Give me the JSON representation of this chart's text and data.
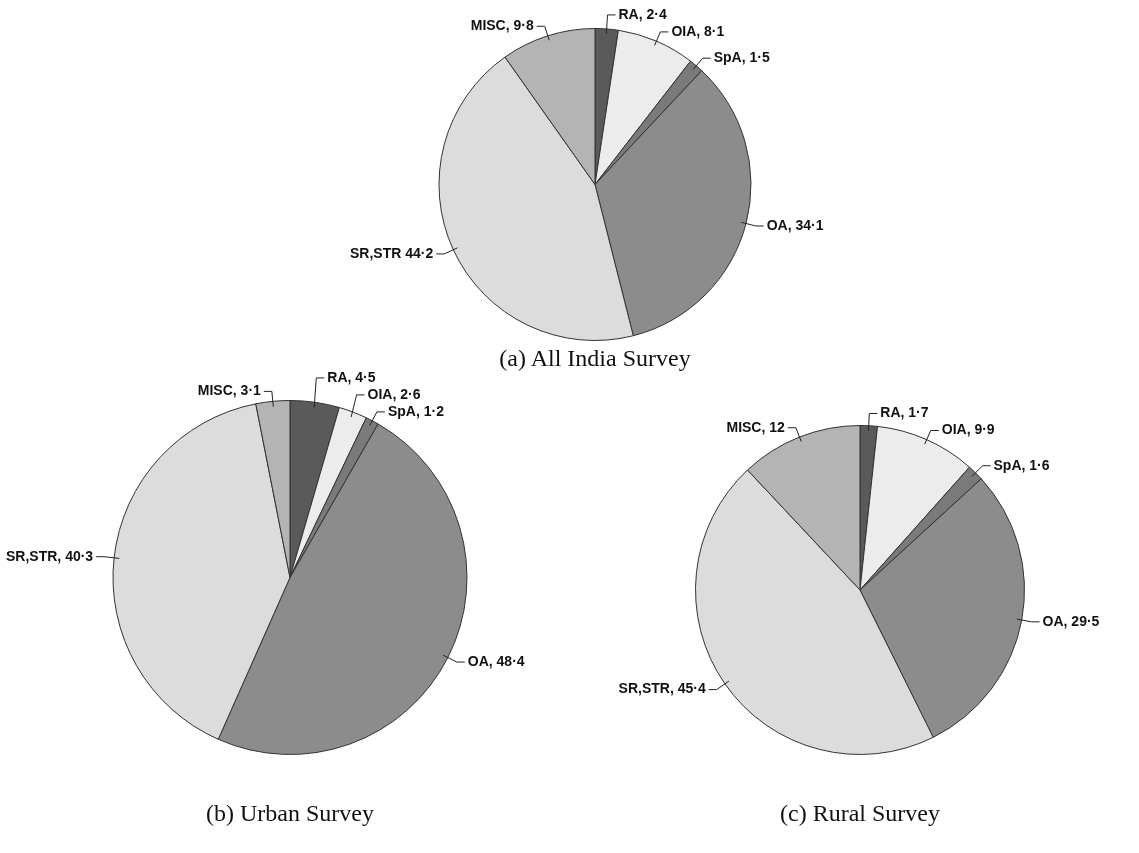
{
  "chart_data": [
    {
      "type": "pie",
      "title": "(a) All India Survey",
      "categories": [
        "RA",
        "OIA",
        "SpA",
        "OA",
        "SR,STR",
        "MISC"
      ],
      "values": [
        2.4,
        8.1,
        1.5,
        34.1,
        44.2,
        9.8
      ],
      "colors": [
        "#5a5a5a",
        "#ececec",
        "#7a7a7a",
        "#8c8c8c",
        "#dcdcdc",
        "#b4b4b4"
      ],
      "value_labels": [
        ", 2·4",
        ", 8·1",
        ", 1·5",
        ", 34·1",
        " 44·2",
        ", 9·8"
      ],
      "legend": false
    },
    {
      "type": "pie",
      "title": "(b) Urban Survey",
      "categories": [
        "RA",
        "OIA",
        "SpA",
        "OA",
        "SR,STR",
        "MISC"
      ],
      "values": [
        4.5,
        2.6,
        1.2,
        48.4,
        40.3,
        3.1
      ],
      "colors": [
        "#5a5a5a",
        "#ececec",
        "#7a7a7a",
        "#8c8c8c",
        "#dcdcdc",
        "#b4b4b4"
      ],
      "value_labels": [
        ", 4·5",
        ", 2·6",
        ", 1·2",
        ", 48·4",
        ", 40·3",
        ", 3·1"
      ],
      "legend": false
    },
    {
      "type": "pie",
      "title": "(c) Rural Survey",
      "categories": [
        "RA",
        "OIA",
        "SpA",
        "OA",
        "SR,STR",
        "MISC"
      ],
      "values": [
        1.7,
        9.9,
        1.6,
        29.5,
        45.4,
        12
      ],
      "colors": [
        "#5a5a5a",
        "#ececec",
        "#7a7a7a",
        "#8c8c8c",
        "#dcdcdc",
        "#b4b4b4"
      ],
      "value_labels": [
        ", 1·7",
        ", 9·9",
        ", 1·6",
        ", 29·5",
        ", 45·4",
        ", 12"
      ],
      "legend": false
    }
  ]
}
